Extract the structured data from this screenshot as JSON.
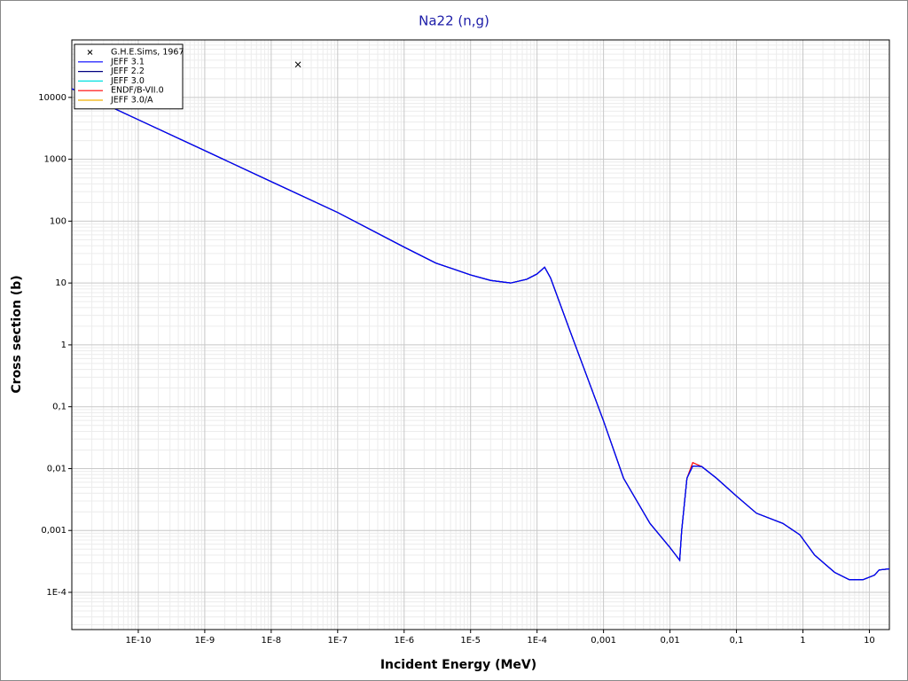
{
  "chart_data": {
    "type": "line",
    "title": "Na22 (n,g)",
    "x_label": "Incident Energy (MeV)",
    "y_label": "Cross section (b)",
    "xlog": true,
    "ylog": true,
    "grid": true,
    "legend": "top-left",
    "xlim": [
      1e-11,
      20
    ],
    "ylim": [
      2.5e-05,
      85000
    ],
    "xticks": [
      {
        "value": 1e-10,
        "label": "1E-10"
      },
      {
        "value": 1e-09,
        "label": "1E-9"
      },
      {
        "value": 1e-08,
        "label": "1E-8"
      },
      {
        "value": 1e-07,
        "label": "1E-7"
      },
      {
        "value": 1e-06,
        "label": "1E-6"
      },
      {
        "value": 1e-05,
        "label": "1E-5"
      },
      {
        "value": 0.0001,
        "label": "1E-4"
      },
      {
        "value": 0.001,
        "label": "0,001"
      },
      {
        "value": 0.01,
        "label": "0,01"
      },
      {
        "value": 0.1,
        "label": "0,1"
      },
      1,
      10
    ],
    "yticks": [
      10000,
      1000,
      100,
      10,
      1,
      {
        "value": 0.1,
        "label": "0,1"
      },
      {
        "value": 0.01,
        "label": "0,01"
      },
      {
        "value": 0.001,
        "label": "0,001"
      },
      {
        "value": 0.0001,
        "label": "1E-4"
      }
    ],
    "x": [
      1e-11,
      1e-10,
      1e-09,
      1e-08,
      1e-07,
      1e-06,
      3e-06,
      1e-05,
      2e-05,
      4e-05,
      7e-05,
      0.0001,
      0.00013,
      0.00016,
      0.0003,
      0.001,
      0.002,
      0.005,
      0.01,
      0.014,
      0.015,
      0.018,
      0.022,
      0.03,
      0.05,
      0.1,
      0.2,
      0.5,
      0.9,
      1.5,
      3,
      5,
      8,
      12,
      14,
      20
    ],
    "series": [
      {
        "name": "G.H.E.Sims, 1967",
        "mode": "markers",
        "color": "#000000",
        "x": [
          2.53e-08
        ],
        "values": [
          34000
        ]
      },
      {
        "name": "JEFF 3.1",
        "mode": "line",
        "color": "#0000ff",
        "values": [
          13800,
          4360,
          1380,
          436,
          138,
          38,
          21,
          13.5,
          11,
          10,
          11.5,
          14,
          18,
          12,
          1.9,
          0.059,
          0.007,
          0.0013,
          0.00053,
          0.00033,
          0.001,
          0.007,
          0.011,
          0.0108,
          0.007,
          0.0036,
          0.0019,
          0.0013,
          0.00085,
          0.0004,
          0.00021,
          0.00016,
          0.00016,
          0.00019,
          0.00023,
          0.00024
        ]
      },
      {
        "name": "JEFF 2.2",
        "mode": "line",
        "color": "#000080",
        "values": [
          13800,
          4360,
          1380,
          436,
          138,
          38,
          21,
          13.5,
          11,
          10,
          11.5,
          14,
          18,
          12,
          1.9,
          0.059,
          0.007,
          0.0013,
          0.00053,
          0.00033,
          0.001,
          0.007,
          0.011,
          0.0108,
          0.007,
          0.0036,
          0.0019,
          0.0013,
          0.00085,
          0.0004,
          0.00021,
          0.00016,
          0.00016,
          0.00019,
          0.00023,
          0.00024
        ]
      },
      {
        "name": "JEFF 3.0",
        "mode": "line",
        "color": "#00e0e0",
        "values": [
          13800,
          4360,
          1380,
          436,
          138,
          38,
          21,
          13.5,
          11,
          10,
          11.5,
          14,
          18,
          12,
          1.9,
          0.059,
          0.007,
          0.0013,
          0.00053,
          0.00033,
          0.001,
          0.007,
          0.011,
          0.0108,
          0.007,
          0.0036,
          0.0019,
          0.0013,
          0.00085,
          0.0004,
          0.00021,
          0.00016,
          0.00016,
          0.00019,
          0.00023,
          0.00024
        ]
      },
      {
        "name": "ENDF/B-VII.0",
        "mode": "line",
        "color": "#ff0000",
        "values": [
          13800,
          4360,
          1380,
          436,
          138,
          38,
          21,
          13.5,
          11,
          10,
          11.5,
          14,
          18,
          12,
          1.9,
          0.059,
          0.007,
          0.0013,
          0.00053,
          0.00033,
          0.001,
          0.007,
          0.0125,
          0.0108,
          0.007,
          0.0036,
          0.0019,
          0.0013,
          0.00085,
          0.0004,
          0.00021,
          0.00016,
          0.00016,
          0.00019,
          0.00023,
          0.00024
        ]
      },
      {
        "name": "JEFF 3.0/A",
        "mode": "line",
        "color": "#f0b000",
        "values": [
          13800,
          4360,
          1380,
          436,
          138,
          38,
          21,
          13.5,
          11,
          10,
          11.5,
          14,
          18,
          12,
          1.9,
          0.059,
          0.007,
          0.0013,
          0.00053,
          0.00033,
          0.001,
          0.007,
          0.011,
          0.0108,
          0.007,
          0.0036,
          0.0019,
          0.0013,
          0.00085,
          0.0004,
          0.00021,
          0.00016,
          0.00016,
          0.00019,
          0.00023,
          0.00024
        ]
      }
    ]
  }
}
